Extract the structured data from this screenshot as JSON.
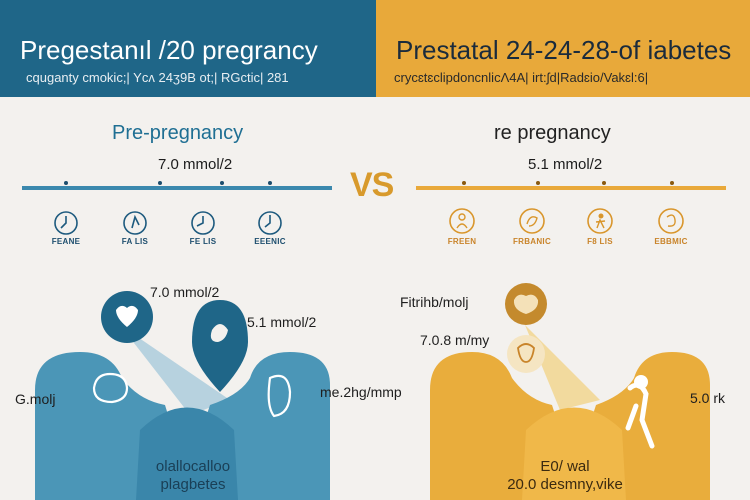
{
  "header": {
    "left_title": "Pregestanıl /20 pregrancy",
    "left_subtitle": "cquganty cmokic;| Ycʌ 24ʒ9B ot;| RGctic| 281",
    "right_title": "Prestatal 24-24-28-of iabetes",
    "right_subtitle": "crycɛtɛclipdoncnlicΛ4A| irt:ʃd|Radɛio/Vakɛl:6|"
  },
  "left": {
    "title": "Pre-pregnancy",
    "value": "7.0 mmol/2",
    "icons": [
      {
        "name": "clock-icon",
        "label": "FEANE"
      },
      {
        "name": "clock-icon",
        "label": "FA LIS"
      },
      {
        "name": "clock-icon",
        "label": "FE LIS"
      },
      {
        "name": "clock-icon",
        "label": "EEENIC"
      }
    ],
    "fig_value_top": "7.0 mmol/2",
    "fig_value_right": "5.1 mmol/2",
    "fig_value_left": "G.molj",
    "bottom_line1": "olallocalloo",
    "bottom_line2": "plagbetes"
  },
  "vs": "VS",
  "right": {
    "title": "re pregnancy",
    "value": "5.1 mmol/2",
    "icons": [
      {
        "name": "person-icon",
        "label": "FREEN"
      },
      {
        "name": "person-icon",
        "label": "FRBANIC"
      },
      {
        "name": "person-icon",
        "label": "F8 LIS"
      },
      {
        "name": "person-icon",
        "label": "EBBMIC"
      }
    ],
    "fig_value_top": "Fitrihb/molj",
    "fig_value_mid": "7.0.8 m/my",
    "fig_value_left": "me.2hg/mmp",
    "fig_value_right": "5.0 rk",
    "bottom_line1": "E0/ wal",
    "bottom_line2": "20.0 desmny,vike"
  },
  "colors": {
    "blue": "#1f6688",
    "light_blue": "#4f9bbd",
    "gold": "#e8a93a",
    "light_gold": "#f0c25a",
    "background": "#f3f1ee"
  }
}
